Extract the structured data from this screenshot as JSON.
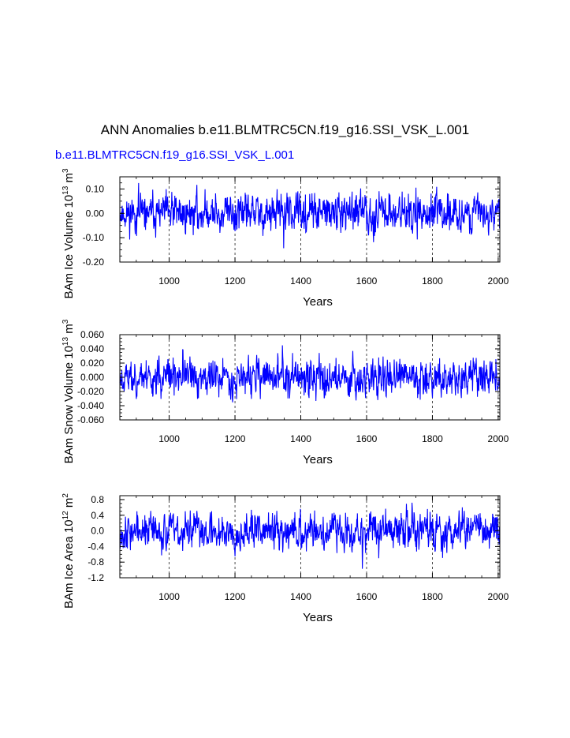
{
  "title": "ANN Anomalies b.e11.BLMTRC5CN.f19_g16.SSI_VSK_L.001",
  "case_label": "b.e11.BLMTRC5CN.f19_g16.SSI_VSK_L.001",
  "case_label_color": "#0000ff",
  "line_color": "#0000ff",
  "chart_data": [
    {
      "type": "line",
      "ylabel": "BAm Ice Volume 10^13 m^3",
      "ylabel_parts": {
        "base": "BAm Ice Volume 10",
        "exp1": "13",
        "mid": " m",
        "exp2": "3"
      },
      "xlabel": "Years",
      "xlim": [
        850,
        2005
      ],
      "ylim": [
        -0.2,
        0.15
      ],
      "xticks": [
        1000,
        1200,
        1400,
        1600,
        1800,
        2000
      ],
      "xtick_labels": [
        "1000",
        "1200",
        "1400",
        "1600",
        "1800",
        "2000"
      ],
      "yticks": [
        -0.2,
        -0.1,
        0.0,
        0.1
      ],
      "ytick_labels": [
        "-0.20",
        "-0.10",
        "0.00",
        "0.10"
      ],
      "vgrid": "dashed",
      "series": [
        {
          "amplitude": 0.045,
          "min": -0.18,
          "max": 0.14,
          "seed": 11
        }
      ]
    },
    {
      "type": "line",
      "ylabel": "BAm Snow Volume 10^13 m^3",
      "ylabel_parts": {
        "base": "BAm Snow Volume 10",
        "exp1": "13",
        "mid": " m",
        "exp2": "3"
      },
      "xlabel": "Years",
      "xlim": [
        850,
        2005
      ],
      "ylim": [
        -0.06,
        0.06
      ],
      "xticks": [
        1000,
        1200,
        1400,
        1600,
        1800,
        2000
      ],
      "xtick_labels": [
        "1000",
        "1200",
        "1400",
        "1600",
        "1800",
        "2000"
      ],
      "yticks": [
        -0.06,
        -0.04,
        -0.02,
        0.0,
        0.02,
        0.04,
        0.06
      ],
      "ytick_labels": [
        "-0.060",
        "-0.040",
        "-0.020",
        "0.000",
        "0.020",
        "0.040",
        "0.060"
      ],
      "vgrid": "dashed",
      "series": [
        {
          "amplitude": 0.015,
          "min": -0.055,
          "max": 0.045,
          "seed": 23
        }
      ]
    },
    {
      "type": "line",
      "ylabel": "BAm Ice Area 10^12 m^2",
      "ylabel_parts": {
        "base": "BAm Ice Area 10",
        "exp1": "12",
        "mid": " m",
        "exp2": "2"
      },
      "xlabel": "Years",
      "xlim": [
        850,
        2005
      ],
      "ylim": [
        -1.2,
        0.9
      ],
      "xticks": [
        1000,
        1200,
        1400,
        1600,
        1800,
        2000
      ],
      "xtick_labels": [
        "1000",
        "1200",
        "1400",
        "1600",
        "1800",
        "2000"
      ],
      "yticks": [
        -1.2,
        -0.8,
        -0.4,
        0.0,
        0.4,
        0.8
      ],
      "ytick_labels": [
        "-1.2",
        "-0.8",
        "-0.4",
        "0.0",
        "0.4",
        "0.8"
      ],
      "vgrid": "dashed",
      "series": [
        {
          "amplitude": 0.27,
          "min": -1.0,
          "max": 0.72,
          "seed": 37
        }
      ]
    }
  ]
}
